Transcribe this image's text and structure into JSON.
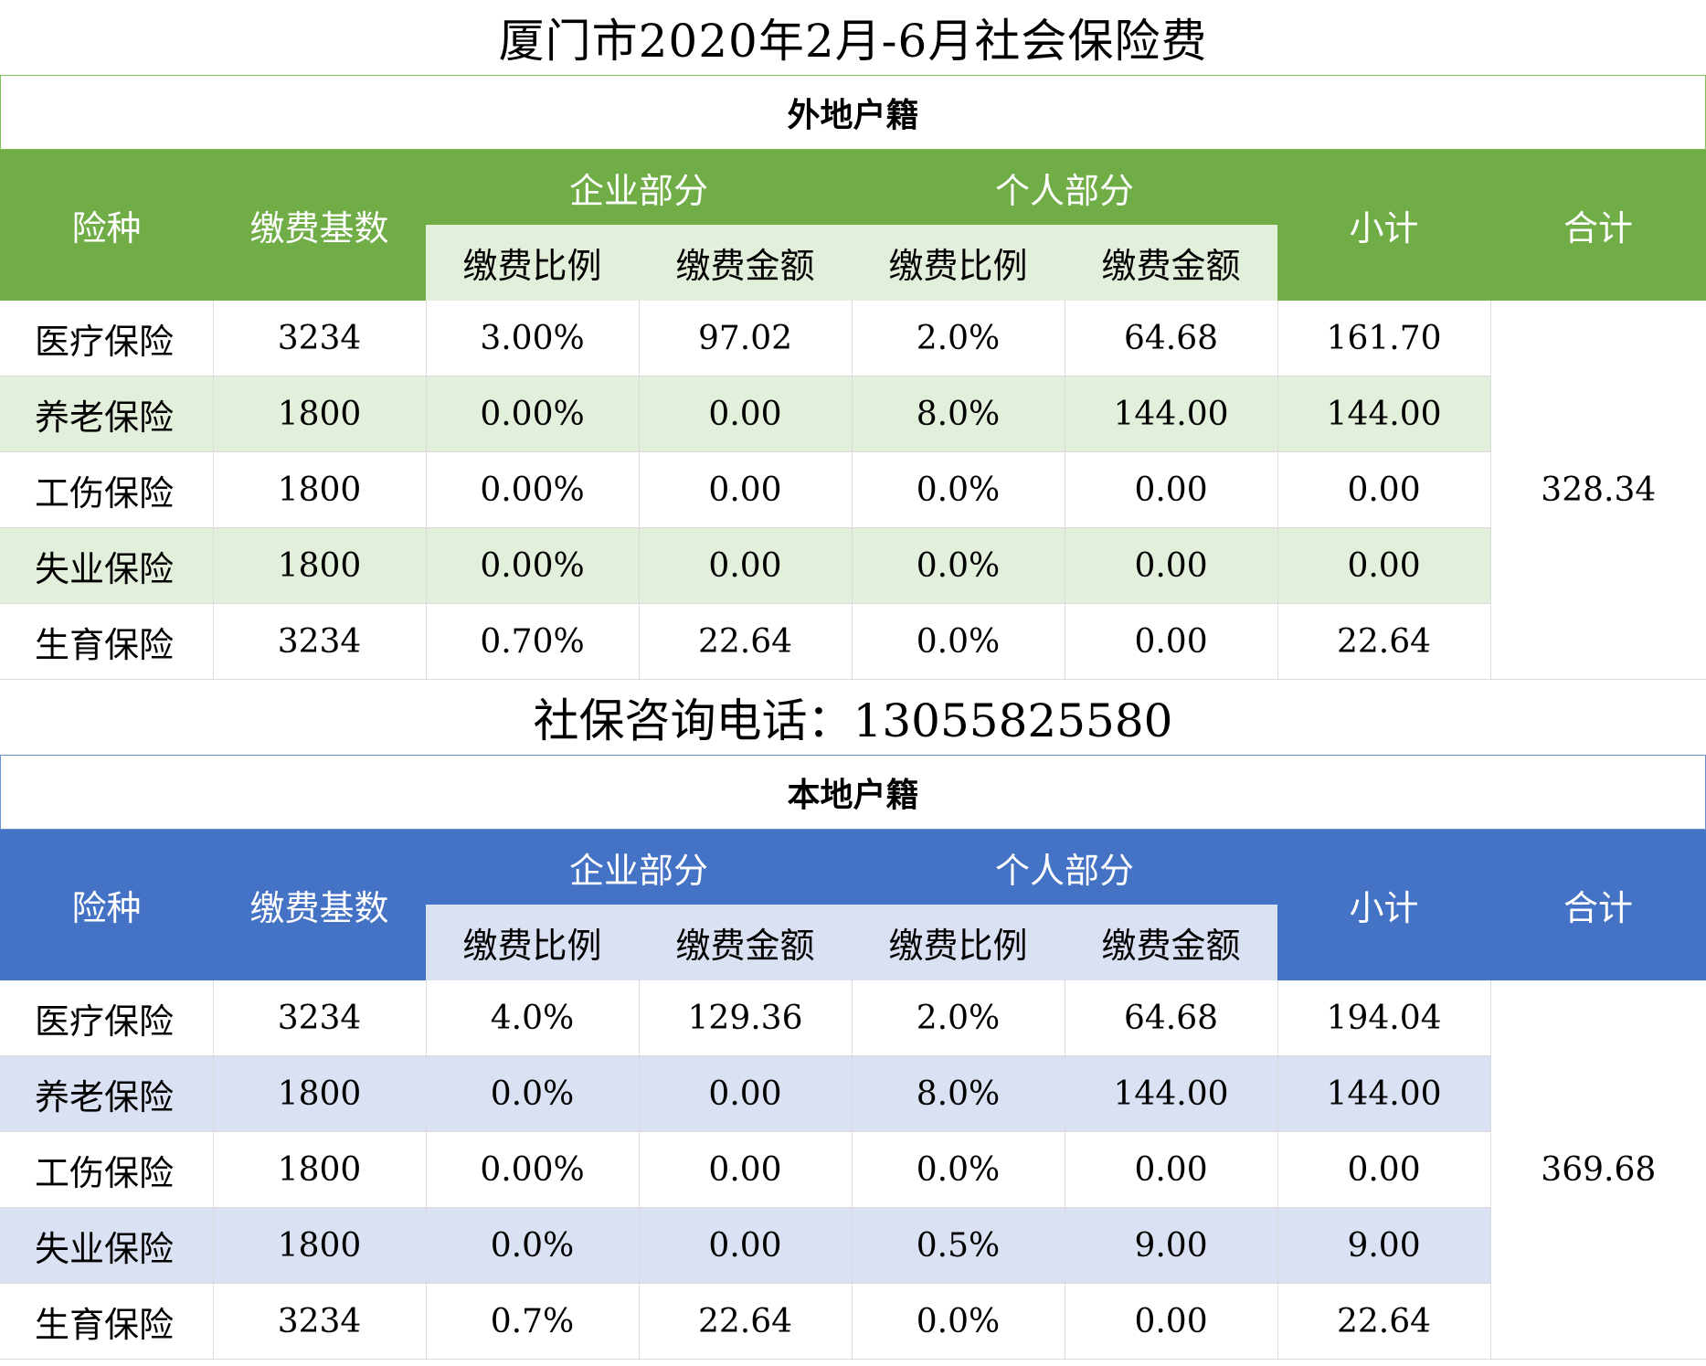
{
  "title": "厦门市2020年2月-6月社会保险费",
  "contact": "社保咨询电话：13055825580",
  "headers": {
    "type": "险种",
    "base": "缴费基数",
    "company": "企业部分",
    "personal": "个人部分",
    "rate": "缴费比例",
    "amount": "缴费金额",
    "subtotal": "小计",
    "total": "合计"
  },
  "nonlocal": {
    "label": "外地户籍",
    "total": "328.34",
    "rows": [
      {
        "type": "医疗保险",
        "base": "3234",
        "c_rate": "3.00%",
        "c_amt": "97.02",
        "p_rate": "2.0%",
        "p_amt": "64.68",
        "sub": "161.70"
      },
      {
        "type": "养老保险",
        "base": "1800",
        "c_rate": "0.00%",
        "c_amt": "0.00",
        "p_rate": "8.0%",
        "p_amt": "144.00",
        "sub": "144.00"
      },
      {
        "type": "工伤保险",
        "base": "1800",
        "c_rate": "0.00%",
        "c_amt": "0.00",
        "p_rate": "0.0%",
        "p_amt": "0.00",
        "sub": "0.00"
      },
      {
        "type": "失业保险",
        "base": "1800",
        "c_rate": "0.00%",
        "c_amt": "0.00",
        "p_rate": "0.0%",
        "p_amt": "0.00",
        "sub": "0.00"
      },
      {
        "type": "生育保险",
        "base": "3234",
        "c_rate": "0.70%",
        "c_amt": "22.64",
        "p_rate": "0.0%",
        "p_amt": "0.00",
        "sub": "22.64"
      }
    ]
  },
  "local": {
    "label": "本地户籍",
    "total": "369.68",
    "rows": [
      {
        "type": "医疗保险",
        "base": "3234",
        "c_rate": "4.0%",
        "c_amt": "129.36",
        "p_rate": "2.0%",
        "p_amt": "64.68",
        "sub": "194.04"
      },
      {
        "type": "养老保险",
        "base": "1800",
        "c_rate": "0.0%",
        "c_amt": "0.00",
        "p_rate": "8.0%",
        "p_amt": "144.00",
        "sub": "144.00"
      },
      {
        "type": "工伤保险",
        "base": "1800",
        "c_rate": "0.00%",
        "c_amt": "0.00",
        "p_rate": "0.0%",
        "p_amt": "0.00",
        "sub": "0.00"
      },
      {
        "type": "失业保险",
        "base": "1800",
        "c_rate": "0.0%",
        "c_amt": "0.00",
        "p_rate": "0.5%",
        "p_amt": "9.00",
        "sub": "9.00"
      },
      {
        "type": "生育保险",
        "base": "3234",
        "c_rate": "0.7%",
        "c_amt": "22.64",
        "p_rate": "0.0%",
        "p_amt": "0.00",
        "sub": "22.64"
      }
    ]
  },
  "colors": {
    "green_header": "#70ad47",
    "green_light": "#e2efda",
    "blue_header": "#4472c4",
    "blue_light": "#d9e1f2"
  }
}
